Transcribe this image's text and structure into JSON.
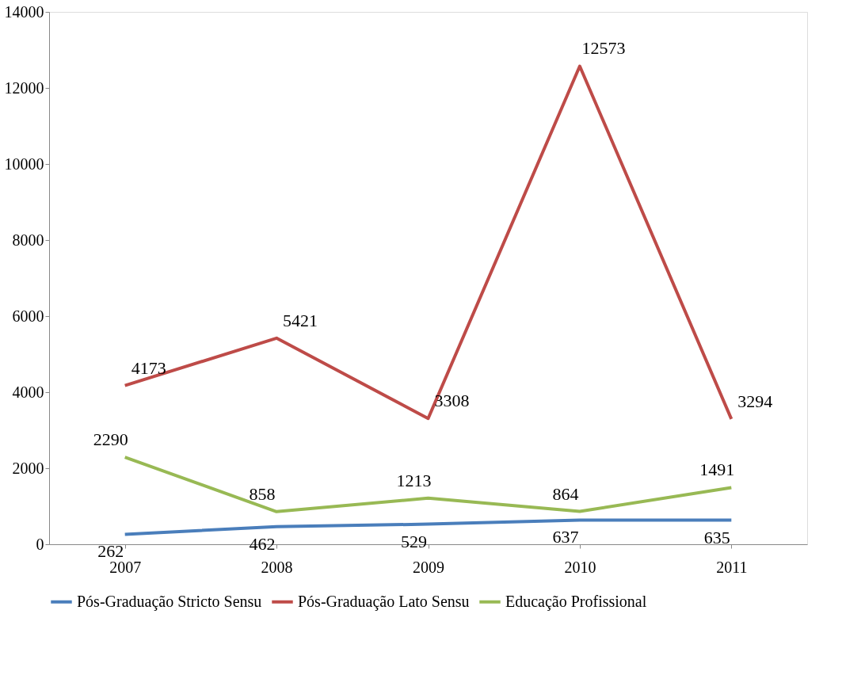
{
  "chart_data": {
    "type": "line",
    "categories": [
      "2007",
      "2008",
      "2009",
      "2010",
      "2011"
    ],
    "series": [
      {
        "name": "Pós-Graduação Stricto Sensu",
        "color": "#4a7ebb",
        "values": [
          262,
          462,
          529,
          637,
          635
        ]
      },
      {
        "name": "Pós-Graduação Lato Sensu",
        "color": "#be4b48",
        "values": [
          4173,
          5421,
          3308,
          12573,
          3294
        ]
      },
      {
        "name": "Educação Profissional",
        "color": "#98b954",
        "values": [
          2290,
          858,
          1213,
          864,
          1491
        ]
      }
    ],
    "ylim": [
      0,
      14000
    ],
    "yticks": [
      0,
      2000,
      4000,
      6000,
      8000,
      10000,
      12000,
      14000
    ],
    "data_labels": true,
    "grid": false,
    "legend": "bottom",
    "marker": "none",
    "line_style": "solid"
  }
}
